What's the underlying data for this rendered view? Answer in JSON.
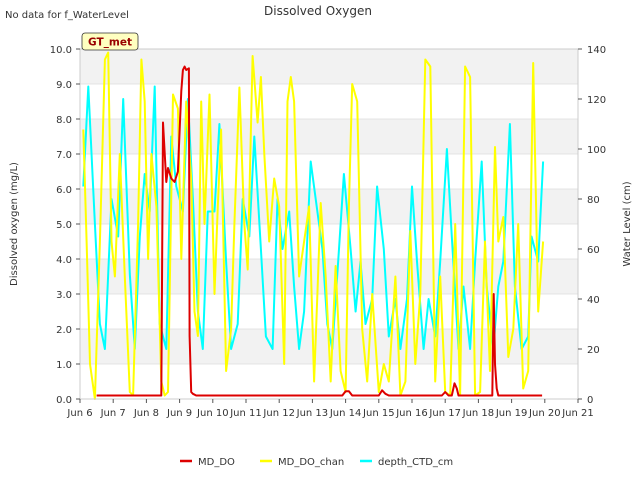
{
  "page": {
    "note": "No data for f_WaterLevel",
    "site_label": "GT_met"
  },
  "chart_data": {
    "type": "line",
    "title": "Dissolved Oxygen",
    "ylabel": "Dissolved oxygen (mg/L)",
    "y2label": "Water Level (cm)",
    "xlim": [
      6,
      21
    ],
    "ylim": [
      0,
      10
    ],
    "y2lim": [
      0,
      140
    ],
    "x_ticks": [
      6,
      7,
      8,
      9,
      10,
      11,
      12,
      13,
      14,
      15,
      16,
      17,
      18,
      19,
      20,
      21
    ],
    "x_tick_labels": [
      "Jun 6",
      "Jun 7",
      "Jun 8",
      "Jun 9",
      "Jun 10",
      "Jun 11",
      "Jun 12",
      "Jun 13",
      "Jun 14",
      "Jun 15",
      "Jun 16",
      "Jun 17",
      "Jun 18",
      "Jun 19",
      "Jun 20",
      "Jun 21"
    ],
    "y_ticks": [
      0,
      1,
      2,
      3,
      4,
      5,
      6,
      7,
      8,
      9,
      10
    ],
    "y_tick_labels": [
      "0.0",
      "1.0",
      "2.0",
      "3.0",
      "4.0",
      "5.0",
      "6.0",
      "7.0",
      "8.0",
      "9.0",
      "10.0"
    ],
    "y2_ticks": [
      0,
      20,
      40,
      60,
      80,
      100,
      120,
      140
    ],
    "y2_tick_labels": [
      "0",
      "20",
      "40",
      "60",
      "80",
      "100",
      "120",
      "140"
    ],
    "legend": {
      "placement": "bottom-center",
      "entries": [
        "MD_DO",
        "MD_DO_chan",
        "depth_CTD_cm"
      ]
    },
    "series": [
      {
        "name": "MD_DO",
        "axis": "left",
        "color": "#dd0000",
        "x": [
          6.5,
          8.45,
          8.5,
          8.6,
          8.65,
          8.75,
          8.85,
          8.95,
          9.05,
          9.1,
          9.15,
          9.2,
          9.28,
          9.3,
          9.35,
          9.4,
          9.5,
          13.9,
          14.0,
          14.1,
          14.2,
          14.3,
          15.0,
          15.1,
          15.2,
          15.3,
          16.9,
          17.0,
          17.1,
          17.2,
          17.28,
          17.35,
          17.4,
          17.5,
          18.42,
          18.46,
          18.5,
          18.55,
          18.6,
          18.7,
          19.92
        ],
        "y": [
          0.1,
          0.1,
          7.9,
          6.2,
          6.6,
          6.3,
          6.2,
          6.5,
          8.8,
          9.4,
          9.5,
          9.4,
          9.45,
          1.8,
          0.2,
          0.15,
          0.1,
          0.1,
          0.22,
          0.22,
          0.1,
          0.1,
          0.1,
          0.25,
          0.15,
          0.1,
          0.1,
          0.2,
          0.1,
          0.1,
          0.45,
          0.3,
          0.1,
          0.1,
          0.1,
          3.0,
          1.0,
          0.3,
          0.1,
          0.1,
          0.1
        ]
      },
      {
        "name": "MD_DO_chan",
        "axis": "left",
        "color": "#ffff00",
        "x": [
          6.1,
          6.2,
          6.3,
          6.45,
          6.6,
          6.75,
          6.85,
          6.95,
          7.05,
          7.2,
          7.35,
          7.5,
          7.6,
          7.75,
          7.85,
          7.95,
          8.05,
          8.15,
          8.3,
          8.45,
          8.55,
          8.65,
          8.8,
          8.95,
          9.05,
          9.2,
          9.35,
          9.45,
          9.55,
          9.65,
          9.75,
          9.9,
          10.05,
          10.15,
          10.25,
          10.4,
          10.55,
          10.65,
          10.8,
          10.95,
          11.05,
          11.2,
          11.35,
          11.45,
          11.55,
          11.7,
          11.85,
          12.0,
          12.15,
          12.25,
          12.35,
          12.45,
          12.6,
          12.75,
          12.9,
          13.05,
          13.15,
          13.25,
          13.4,
          13.55,
          13.7,
          13.85,
          14.0,
          14.1,
          14.2,
          14.35,
          14.5,
          14.65,
          14.8,
          15.0,
          15.15,
          15.3,
          15.5,
          15.65,
          15.8,
          15.95,
          16.1,
          16.25,
          16.4,
          16.55,
          16.7,
          16.85,
          17.0,
          17.15,
          17.3,
          17.45,
          17.6,
          17.75,
          17.9,
          18.05,
          18.2,
          18.35,
          18.5,
          18.6,
          18.75,
          18.9,
          19.05,
          19.2,
          19.35,
          19.5,
          19.65,
          19.8,
          19.95
        ],
        "y": [
          7.7,
          4.5,
          1.0,
          0.0,
          4.5,
          9.7,
          9.9,
          4.5,
          3.5,
          7.0,
          3.5,
          0.2,
          0.1,
          5.0,
          9.7,
          8.5,
          4.0,
          7.0,
          5.5,
          0.5,
          0.1,
          0.2,
          8.7,
          8.3,
          4.0,
          8.5,
          6.3,
          2.5,
          1.8,
          8.5,
          5.0,
          8.7,
          3.0,
          5.5,
          7.7,
          0.8,
          2.0,
          5.0,
          8.9,
          5.0,
          3.7,
          9.8,
          7.9,
          9.2,
          7.0,
          4.5,
          6.3,
          5.5,
          1.0,
          8.5,
          9.2,
          8.5,
          3.5,
          4.5,
          5.5,
          0.5,
          3.0,
          5.6,
          3.5,
          0.5,
          3.8,
          0.8,
          0.2,
          5.5,
          9.0,
          8.5,
          2.0,
          0.5,
          3.0,
          0.2,
          1.0,
          0.5,
          3.5,
          0.1,
          0.5,
          4.8,
          1.0,
          3.0,
          9.7,
          9.5,
          0.5,
          3.5,
          0.2,
          0.1,
          5.0,
          0.1,
          9.5,
          9.2,
          0.1,
          0.2,
          4.5,
          0.8,
          7.2,
          4.5,
          5.2,
          1.2,
          2.0,
          5.0,
          0.3,
          0.8,
          9.6,
          2.5,
          4.5
        ]
      },
      {
        "name": "depth_CTD_cm",
        "axis": "right",
        "color": "#00ffff",
        "x": [
          6.1,
          6.25,
          6.45,
          6.6,
          6.75,
          6.95,
          7.15,
          7.3,
          7.5,
          7.65,
          7.8,
          7.95,
          8.1,
          8.25,
          8.4,
          8.6,
          8.75,
          8.9,
          9.1,
          9.25,
          9.4,
          9.55,
          9.7,
          9.85,
          10.05,
          10.2,
          10.4,
          10.55,
          10.75,
          10.9,
          11.1,
          11.25,
          11.45,
          11.6,
          11.8,
          11.95,
          12.1,
          12.3,
          12.45,
          12.6,
          12.75,
          12.95,
          13.1,
          13.3,
          13.45,
          13.6,
          13.8,
          13.95,
          14.15,
          14.3,
          14.45,
          14.6,
          14.8,
          14.95,
          15.15,
          15.3,
          15.5,
          15.65,
          15.85,
          16.0,
          16.15,
          16.35,
          16.5,
          16.7,
          16.85,
          17.05,
          17.2,
          17.4,
          17.55,
          17.75,
          17.9,
          18.1,
          18.25,
          18.45,
          18.6,
          18.75,
          18.95,
          19.1,
          19.3,
          19.5,
          19.6,
          19.8,
          19.95
        ],
        "y": [
          85,
          125,
          70,
          30,
          20,
          80,
          65,
          120,
          50,
          20,
          65,
          90,
          75,
          125,
          30,
          20,
          105,
          85,
          75,
          120,
          80,
          35,
          20,
          75,
          75,
          110,
          55,
          20,
          30,
          80,
          65,
          105,
          60,
          25,
          20,
          80,
          60,
          75,
          45,
          20,
          35,
          95,
          80,
          60,
          30,
          20,
          60,
          90,
          60,
          35,
          55,
          30,
          40,
          85,
          60,
          25,
          40,
          20,
          40,
          85,
          55,
          20,
          40,
          25,
          55,
          100,
          65,
          20,
          45,
          20,
          55,
          95,
          45,
          20,
          45,
          55,
          110,
          45,
          20,
          25,
          65,
          55,
          95
        ]
      }
    ]
  }
}
